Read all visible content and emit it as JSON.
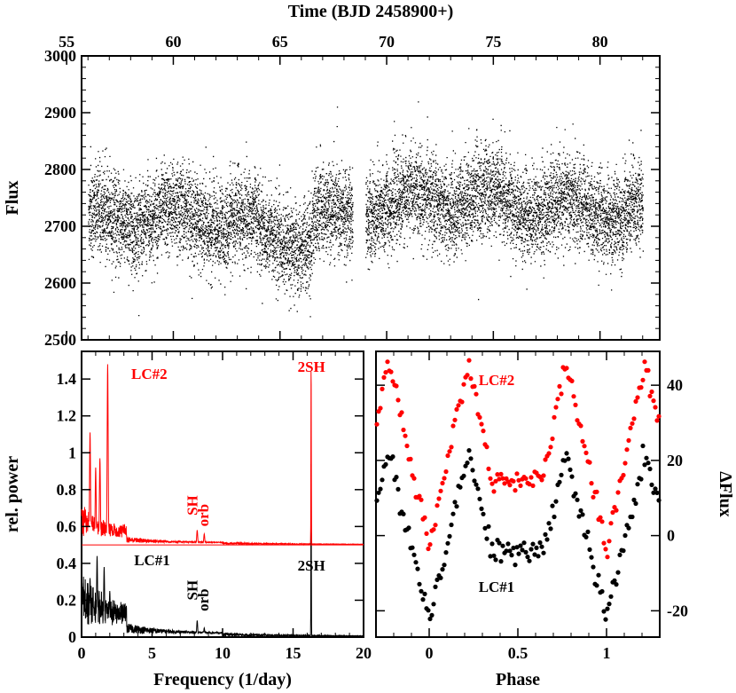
{
  "colors": {
    "lc1": "#000000",
    "lc2": "#ff0000"
  },
  "chart_data": [
    {
      "type": "scatter",
      "name": "light-curve",
      "xlabel": "Time (BJD 2458900+)",
      "ylabel": "Flux",
      "xlim": [
        55.7,
        82.8
      ],
      "ylim": [
        2500,
        3000
      ],
      "xticks": [
        55,
        60,
        65,
        70,
        75,
        80
      ],
      "yticks": [
        2500,
        2600,
        2700,
        2800,
        2900,
        3000
      ],
      "segments": [
        {
          "start": 56.0,
          "end": 68.4
        },
        {
          "start": 69.0,
          "end": 82.0
        }
      ],
      "description_mean_flux": 2720,
      "data_gap": [
        68.4,
        69.0
      ]
    },
    {
      "type": "line",
      "name": "periodogram",
      "xlabel": "Frequency (1/day)",
      "ylabel": "rel. power",
      "xlim": [
        0,
        20
      ],
      "ylim": [
        0,
        1.55
      ],
      "xticks": [
        0,
        5,
        10,
        15,
        20
      ],
      "yticks": [
        0,
        0.2,
        0.4,
        0.6,
        0.8,
        1,
        1.2,
        1.4
      ],
      "series": [
        {
          "name": "LC#1",
          "color": "#000000",
          "offset": 0,
          "peaks": [
            [
              1.1,
              0.44
            ],
            [
              1.6,
              0.38
            ],
            [
              0.6,
              0.32
            ],
            [
              2.0,
              0.25
            ],
            [
              8.2,
              0.09
            ],
            [
              8.7,
              0.05
            ],
            [
              16.28,
              1.0
            ]
          ]
        },
        {
          "name": "LC#2",
          "color": "#ff0000",
          "offset": 0.5,
          "peaks": [
            [
              1.85,
              0.98
            ],
            [
              0.6,
              0.61
            ],
            [
              1.3,
              0.47
            ],
            [
              1.0,
              0.42
            ],
            [
              8.2,
              0.08
            ],
            [
              8.7,
              0.06
            ],
            [
              16.28,
              1.0
            ]
          ]
        }
      ],
      "annotations": [
        {
          "text": "LC#2",
          "x": 4.8,
          "y": 1.4,
          "color": "#ff0000"
        },
        {
          "text": "LC#1",
          "x": 5.0,
          "y": 0.39,
          "color": "#000000"
        },
        {
          "text": "SH",
          "x": 8.2,
          "y": 0.66,
          "color": "#ff0000"
        },
        {
          "text": "orb",
          "x": 9.0,
          "y": 0.6,
          "color": "#ff0000"
        },
        {
          "text": "SH",
          "x": 8.2,
          "y": 0.2,
          "color": "#000000"
        },
        {
          "text": "orb",
          "x": 9.0,
          "y": 0.14,
          "color": "#000000"
        },
        {
          "text": "2SH",
          "x": 16.3,
          "y": 1.44,
          "color": "#ff0000"
        },
        {
          "text": "2SH",
          "x": 16.3,
          "y": 0.36,
          "color": "#000000"
        }
      ]
    },
    {
      "type": "scatter",
      "name": "phase-folded",
      "xlabel": "Phase",
      "ylabel": "ΔFlux",
      "xlim": [
        -0.3,
        1.3
      ],
      "ylim": [
        -27,
        49
      ],
      "xticks": [
        0,
        0.5,
        1
      ],
      "xtick_labels": [
        "0",
        "0.5",
        "1"
      ],
      "yticks": [
        -20,
        0,
        20,
        40
      ],
      "series": [
        {
          "name": "LC#1",
          "color": "#000000",
          "min": -22,
          "max": 22,
          "plateau": -3
        },
        {
          "name": "LC#2",
          "color": "#ff0000",
          "min": -4,
          "max": 47,
          "plateau": 15
        }
      ],
      "annotations": [
        {
          "text": "LC#2",
          "x": 0.38,
          "y": 40,
          "color": "#ff0000"
        },
        {
          "text": "LC#1",
          "x": 0.38,
          "y": -15,
          "color": "#000000"
        }
      ]
    }
  ]
}
